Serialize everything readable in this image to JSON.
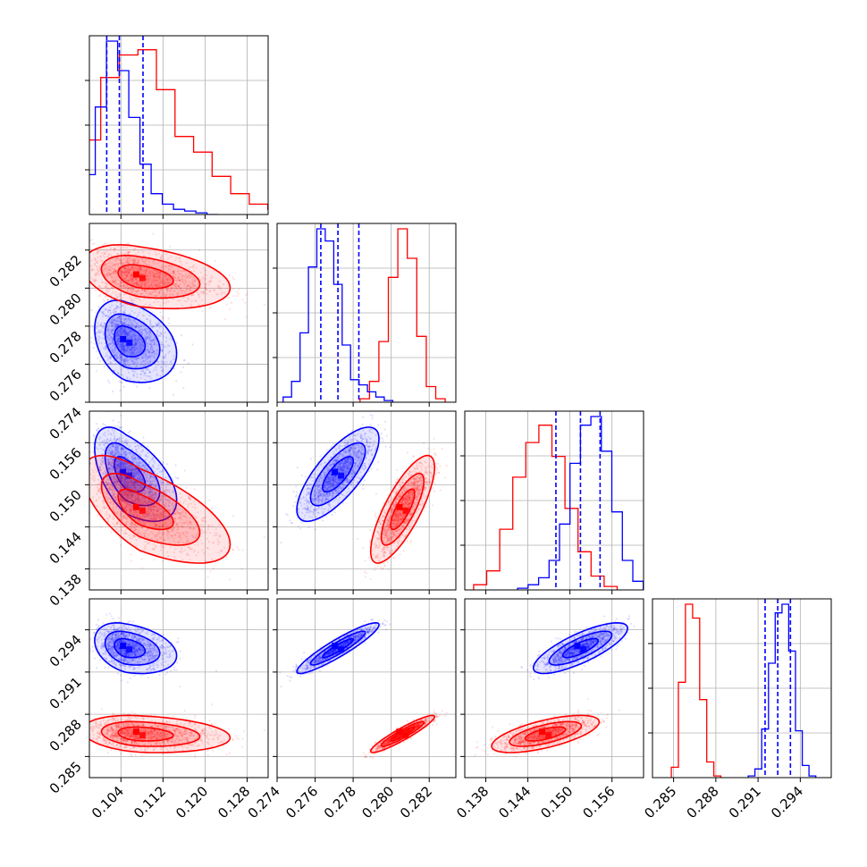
{
  "chart_data": {
    "type": "corner",
    "layout": "4x4 lower-triangular grid of panels",
    "parameters": [
      {
        "ticks": [
          0.104,
          0.112,
          0.12,
          0.128
        ],
        "tick_labels": [
          "0.104",
          "0.112",
          "0.120",
          "0.128"
        ],
        "range": [
          0.098,
          0.132
        ]
      },
      {
        "ticks": [
          0.274,
          0.276,
          0.278,
          0.28,
          0.282
        ],
        "tick_labels": [
          "0.274",
          "0.276",
          "0.278",
          "0.280",
          "0.282"
        ],
        "range": [
          0.274,
          0.2834
        ]
      },
      {
        "ticks": [
          0.138,
          0.144,
          0.15,
          0.156
        ],
        "tick_labels": [
          "0.138",
          "0.144",
          "0.150",
          "0.156"
        ],
        "range": [
          0.135,
          0.1605
        ]
      },
      {
        "ticks": [
          0.285,
          0.288,
          0.291,
          0.294
        ],
        "tick_labels": [
          "0.285",
          "0.288",
          "0.291",
          "0.294"
        ],
        "range": [
          0.2835,
          0.2962
        ]
      }
    ],
    "series": [
      {
        "color": "#0000ff",
        "means": [
          0.105,
          0.2772,
          0.1515,
          0.2927
        ],
        "sigmas": [
          0.0025,
          0.0009,
          0.0028,
          0.00075
        ],
        "correlations": [
          [
            1,
            -0.3,
            -0.55,
            -0.3
          ],
          [
            -0.3,
            1,
            0.75,
            0.92
          ],
          [
            -0.55,
            0.75,
            1,
            0.78
          ],
          [
            -0.3,
            0.92,
            0.78,
            1
          ]
        ],
        "quantiles": [
          [
            0.1013,
            0.1037,
            0.1082
          ],
          [
            0.2763,
            0.2772,
            0.2783
          ],
          [
            0.148,
            0.1515,
            0.1543
          ],
          [
            0.2915,
            0.2924,
            0.2933
          ]
        ],
        "hist_1d": [
          [
            0.23,
            0.62,
            1.0,
            0.83,
            0.56,
            0.29,
            0.12,
            0.06,
            0.03,
            0.02,
            0.01,
            0.0
          ],
          [
            0.03,
            0.12,
            0.4,
            0.78,
            1.0,
            0.93,
            0.68,
            0.33,
            0.13,
            0.1,
            0.06,
            0.03,
            0.01
          ],
          [
            0.01,
            0.03,
            0.07,
            0.17,
            0.38,
            0.73,
            0.95,
            1.0,
            0.8,
            0.45,
            0.17,
            0.05
          ],
          [
            0.01,
            0.05,
            0.28,
            0.66,
            0.95,
            1.0,
            0.73,
            0.27,
            0.07,
            0.01
          ]
        ]
      },
      {
        "color": "#ff0000",
        "means": [
          0.1075,
          0.2806,
          0.1465,
          0.2866
        ],
        "sigmas": [
          0.0045,
          0.0007,
          0.0032,
          0.00055
        ],
        "correlations": [
          [
            1,
            -0.35,
            -0.65,
            -0.2
          ],
          [
            -0.35,
            1,
            0.78,
            0.93
          ],
          [
            -0.65,
            0.78,
            1,
            0.65
          ],
          [
            -0.2,
            0.93,
            0.65,
            1
          ]
        ],
        "quantiles": null,
        "hist_1d": [
          [
            0.01,
            0.43,
            0.79,
            0.92,
            0.95,
            0.72,
            0.45,
            0.36,
            0.22,
            0.12,
            0.06,
            0.03,
            0.01
          ],
          [
            0.02,
            0.12,
            0.35,
            0.72,
            1.0,
            0.83,
            0.38,
            0.09,
            0.02
          ],
          [
            0.03,
            0.11,
            0.35,
            0.65,
            0.85,
            0.95,
            0.77,
            0.47,
            0.22,
            0.08,
            0.02
          ],
          [
            0.06,
            0.55,
            1.0,
            0.92,
            0.45,
            0.09,
            0.01
          ]
        ]
      }
    ],
    "marker": "scatter points + filled density squares + 3 contour levels",
    "grid": true,
    "legend": "none"
  }
}
